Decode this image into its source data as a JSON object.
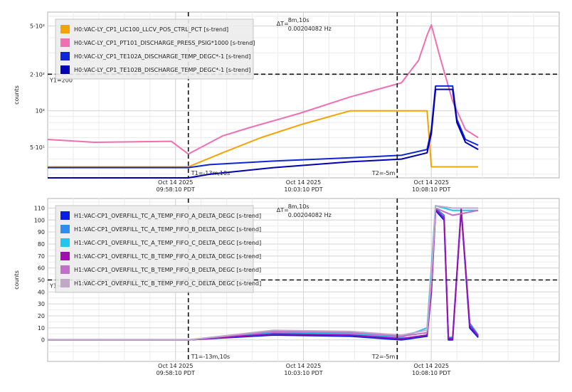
{
  "chart_data": [
    {
      "type": "line",
      "ylabel": "counts",
      "yscale": "log",
      "ylim": [
        28,
        650
      ],
      "xlim": [
        "09:53:10",
        "10:13:10"
      ],
      "x_ticks": [
        {
          "x": "09:58:10",
          "date": "Oct 14 2025",
          "time": "09:58:10 PDT"
        },
        {
          "x": "10:03:10",
          "date": "Oct 14 2025",
          "time": "10:03:10 PDT"
        },
        {
          "x": "10:08:10",
          "date": "Oct 14 2025",
          "time": "10:08:10 PDT"
        }
      ],
      "y_ticks": [
        {
          "value": 50,
          "label": "5·10¹"
        },
        {
          "value": 100,
          "label": "10²"
        },
        {
          "value": 200,
          "label": "2·10²"
        },
        {
          "value": 500,
          "label": "5·10²"
        }
      ],
      "grid": true,
      "legend_position": "top-left",
      "cursor_t1": {
        "x": "09:58:40",
        "label": "T1=-13m,10s"
      },
      "cursor_t2": {
        "x": "10:06:50",
        "label": "T2=-5m"
      },
      "cursor_y1": {
        "value": 200,
        "label": "Y1=200"
      },
      "delta": {
        "dt": "ΔT=",
        "value": "8m,10s",
        "freq": "0.00204082 Hz"
      },
      "series": [
        {
          "name": "H0:VAC-LY_CP1_LIC100_LLCV_POS_CTRL_PCT [s-trend]",
          "color": "#f4a300",
          "x": [
            "09:53:10",
            "09:58:40",
            "10:00:00",
            "10:01:30",
            "10:03:10",
            "10:05:00",
            "10:07:00",
            "10:08:00",
            "10:08:10",
            "10:09:00",
            "10:10:00"
          ],
          "values": [
            34.5,
            34.5,
            45,
            60,
            78,
            100,
            100,
            100,
            34.5,
            34.5,
            34.5
          ]
        },
        {
          "name": "H0:VAC-LY_CP1_PT101_DISCHARGE_PRESS_PSIG*1000 [s-trend]",
          "color": "#f06eb4",
          "x": [
            "09:53:10",
            "09:55:00",
            "09:58:00",
            "09:58:40",
            "10:00:00",
            "10:01:00",
            "10:03:00",
            "10:05:00",
            "10:07:00",
            "10:07:40",
            "10:08:00",
            "10:08:10",
            "10:08:30",
            "10:09:00",
            "10:09:30",
            "10:10:00"
          ],
          "values": [
            58,
            55,
            56,
            44,
            62,
            72,
            95,
            130,
            170,
            260,
            420,
            510,
            280,
            120,
            70,
            60
          ]
        },
        {
          "name": "H0:VAC-LY_CP1_TE102A_DISCHARGE_TEMP_DEGC*-1 [s-trend]",
          "color": "#1025d8",
          "x": [
            "09:53:10",
            "09:58:40",
            "09:59:30",
            "10:02:00",
            "10:05:00",
            "10:07:00",
            "10:08:00",
            "10:08:10",
            "10:08:20",
            "10:09:00",
            "10:09:10",
            "10:09:30",
            "10:10:00"
          ],
          "values": [
            34,
            34,
            36,
            38.5,
            41,
            43,
            48,
            70,
            160,
            160,
            85,
            58,
            52
          ]
        },
        {
          "name": "H0:VAC-LY_CP1_TE102B_DISCHARGE_TEMP_DEGC*-1 [s-trend]",
          "color": "#0000b4",
          "x": [
            "09:53:10",
            "09:58:40",
            "09:59:30",
            "10:02:00",
            "10:05:00",
            "10:07:00",
            "10:08:00",
            "10:08:10",
            "10:08:20",
            "10:09:00",
            "10:09:10",
            "10:09:30",
            "10:10:00"
          ],
          "values": [
            28,
            28,
            30,
            34,
            38,
            40,
            45,
            65,
            150,
            150,
            80,
            55,
            48
          ]
        }
      ]
    },
    {
      "type": "line",
      "ylabel": "counts",
      "ylim": [
        -18,
        118
      ],
      "xlim": [
        "09:53:10",
        "10:13:10"
      ],
      "x_ticks": [
        {
          "x": "09:58:10",
          "date": "Oct 14 2025",
          "time": "09:58:10 PDT"
        },
        {
          "x": "10:03:10",
          "date": "Oct 14 2025",
          "time": "10:03:10 PDT"
        },
        {
          "x": "10:08:10",
          "date": "Oct 14 2025",
          "time": "10:08:10 PDT"
        }
      ],
      "y_ticks": [
        {
          "value": 0,
          "label": "0"
        },
        {
          "value": 10,
          "label": "10"
        },
        {
          "value": 20,
          "label": "20"
        },
        {
          "value": 30,
          "label": "30"
        },
        {
          "value": 40,
          "label": "40"
        },
        {
          "value": 50,
          "label": "50"
        },
        {
          "value": 60,
          "label": "60"
        },
        {
          "value": 70,
          "label": "70"
        },
        {
          "value": 80,
          "label": "80"
        },
        {
          "value": 90,
          "label": "90"
        },
        {
          "value": 100,
          "label": "100"
        },
        {
          "value": 110,
          "label": "110"
        }
      ],
      "grid": true,
      "legend_position": "top-left",
      "cursor_t1": {
        "x": "09:58:40",
        "label": "T1=-13m,10s"
      },
      "cursor_t2": {
        "x": "10:06:50",
        "label": "T2=-5m"
      },
      "cursor_y1": {
        "value": 50,
        "label": "Y1=50"
      },
      "delta": {
        "dt": "ΔT=",
        "value": "8m,10s",
        "freq": "0.00204082 Hz"
      },
      "series": [
        {
          "name": "H1:VAC-CP1_OVERFILL_TC_A_TEMP_FIFO_A_DELTA_DEGC [s-trend]",
          "color": "#0a1ee0",
          "x": [
            "09:53:10",
            "09:58:40",
            "10:02:00",
            "10:05:00",
            "10:07:00",
            "10:08:00",
            "10:08:10",
            "10:08:20",
            "10:08:40",
            "10:08:50",
            "10:09:00",
            "10:09:20",
            "10:09:30",
            "10:09:40",
            "10:10:00"
          ],
          "values": [
            0,
            0,
            4,
            3,
            0,
            3,
            40,
            108,
            100,
            0,
            0,
            108,
            60,
            10,
            2
          ]
        },
        {
          "name": "H1:VAC-CP1_OVERFILL_TC_A_TEMP_FIFO_B_DELTA_DEGC [s-trend]",
          "color": "#2e8ef0",
          "x": [
            "09:53:10",
            "09:58:40",
            "10:02:00",
            "10:05:00",
            "10:07:00",
            "10:08:00",
            "10:08:10",
            "10:08:20",
            "10:08:40",
            "10:08:50",
            "10:09:00",
            "10:09:20",
            "10:09:30",
            "10:09:40",
            "10:10:00"
          ],
          "values": [
            0,
            0,
            5,
            4,
            1,
            4,
            45,
            110,
            104,
            2,
            2,
            110,
            62,
            14,
            4
          ]
        },
        {
          "name": "H1:VAC-CP1_OVERFILL_TC_A_TEMP_FIFO_C_DELTA_DEGC [s-trend]",
          "color": "#22c4f0",
          "x": [
            "09:53:10",
            "09:58:40",
            "10:02:00",
            "10:05:00",
            "10:07:00",
            "10:08:00",
            "10:08:10",
            "10:08:20",
            "10:09:00",
            "10:10:00"
          ],
          "values": [
            0,
            0,
            6,
            5,
            2,
            10,
            60,
            112,
            108,
            108
          ]
        },
        {
          "name": "H1:VAC-CP1_OVERFILL_TC_B_TEMP_FIFO_A_DELTA_DEGC [s-trend]",
          "color": "#a010b0",
          "x": [
            "09:53:10",
            "09:58:40",
            "10:02:00",
            "10:05:00",
            "10:07:00",
            "10:08:00",
            "10:08:10",
            "10:08:20",
            "10:08:40",
            "10:08:50",
            "10:09:00",
            "10:09:20",
            "10:09:30",
            "10:09:40",
            "10:10:00"
          ],
          "values": [
            0,
            0,
            5,
            4,
            1,
            4,
            42,
            109,
            102,
            1,
            1,
            109,
            62,
            12,
            3
          ]
        },
        {
          "name": "H1:VAC-CP1_OVERFILL_TC_B_TEMP_FIFO_B_DELTA_DEGC [s-trend]",
          "color": "#c070c8",
          "x": [
            "09:53:10",
            "09:58:40",
            "10:02:00",
            "10:05:00",
            "10:07:00",
            "10:08:00",
            "10:08:10",
            "10:08:20",
            "10:09:00",
            "10:10:00"
          ],
          "values": [
            0,
            0,
            7,
            6,
            3,
            6,
            48,
            110,
            104,
            108
          ]
        },
        {
          "name": "H1:VAC-CP1_OVERFILL_TC_B_TEMP_FIFO_C_DELTA_DEGC [s-trend]",
          "color": "#c0a8c8",
          "x": [
            "09:53:10",
            "09:58:40",
            "10:02:00",
            "10:05:00",
            "10:07:00",
            "10:08:00",
            "10:08:10",
            "10:08:20",
            "10:09:00",
            "10:10:00"
          ],
          "values": [
            0,
            0,
            8,
            7,
            4,
            8,
            55,
            112,
            110,
            110
          ]
        }
      ]
    }
  ]
}
